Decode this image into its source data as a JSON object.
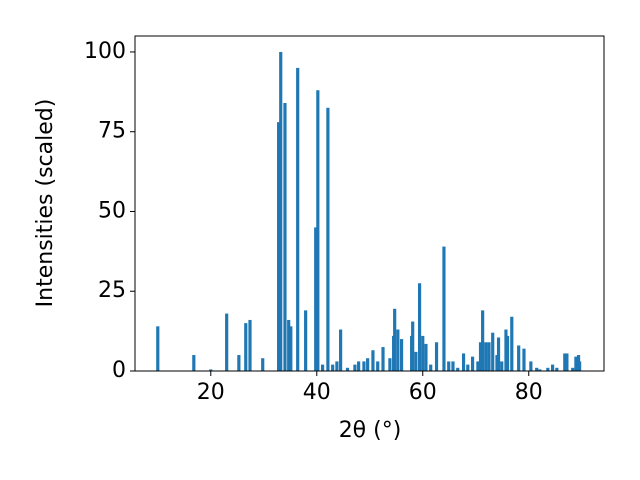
{
  "chart_data": {
    "type": "bar",
    "xlabel": "2θ (°)",
    "ylabel": "Intensities (scaled)",
    "color": "#1f77b4",
    "bar_width": 0.6,
    "x": [
      10.0,
      16.8,
      20.0,
      23.0,
      25.3,
      26.6,
      27.4,
      29.8,
      32.8,
      33.2,
      34.0,
      34.7,
      35.1,
      36.4,
      37.9,
      39.8,
      40.2,
      41.1,
      42.1,
      43.0,
      43.8,
      44.5,
      45.8,
      47.2,
      47.9,
      48.9,
      49.6,
      50.6,
      51.5,
      52.5,
      53.8,
      54.5,
      54.7,
      55.3,
      56.0,
      57.9,
      58.1,
      58.7,
      59.4,
      60.0,
      60.6,
      61.5,
      62.6,
      64.0,
      64.9,
      65.7,
      66.6,
      67.7,
      68.5,
      69.4,
      70.4,
      70.9,
      71.3,
      71.9,
      72.5,
      73.2,
      74.0,
      74.3,
      74.9,
      75.7,
      76.0,
      76.8,
      78.1,
      79.1,
      80.4,
      81.5,
      82.1,
      83.6,
      84.5,
      85.3,
      86.8,
      87.2,
      88.3,
      88.9,
      89.4,
      89.6
    ],
    "values": [
      14,
      5,
      0.5,
      18,
      5,
      15,
      16,
      4,
      78,
      100,
      84,
      16,
      14,
      95,
      19,
      45,
      88,
      2,
      82.5,
      2,
      3,
      13,
      1,
      2,
      3,
      3,
      4,
      6.5,
      3,
      7.5,
      4,
      11,
      19.5,
      13,
      10,
      11,
      15.5,
      6,
      27.5,
      11,
      8.5,
      2,
      9,
      39,
      3,
      3,
      1,
      5.5,
      2,
      4.5,
      3,
      9,
      19,
      9,
      9,
      12,
      5,
      10.5,
      3,
      13,
      11,
      17,
      8,
      7,
      3,
      1,
      0.5,
      1,
      2,
      1,
      5.5,
      5.5,
      1,
      4.5,
      5,
      3
    ],
    "xlim": [
      5.7,
      94.2
    ],
    "xticks": [
      20,
      40,
      60,
      80
    ],
    "ylim": [
      0,
      105
    ],
    "yticks": [
      0,
      25,
      50,
      75,
      100
    ]
  }
}
